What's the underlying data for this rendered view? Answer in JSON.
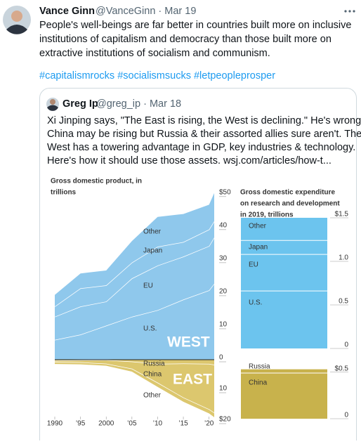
{
  "tweet": {
    "name": "Vance Ginn",
    "meta": "@VanceGinn · Mar 19",
    "text": [
      "People's well-beings are far better in countries built more on inclusive",
      "institutions of capitalism and democracy than those built more on",
      "extractive institutions of socialism and communism."
    ],
    "hashtags": "#capitalismrocks #socialismsucks #letpeopleprosper"
  },
  "quote": {
    "name": "Greg Ip",
    "meta": "@greg_ip · Mar 18",
    "text": [
      "Xi Jinping says, \"The East is rising, the West is declining.\" He's wrong.",
      "China may be rising but Russia & their assorted allies sure aren't. The",
      "West has a towering advantage in GDP, key industries & technology.",
      "Here's how it should use those assets.  wsj.com/articles/how-t..."
    ],
    "gdp_chart": {
      "type": "area",
      "title": [
        "Gross domestic product, in",
        "trillions"
      ],
      "x": [
        1990,
        1995,
        2000,
        2005,
        2010,
        2015,
        2020,
        2021
      ],
      "xlim": [
        1990,
        2021
      ],
      "xticks": [
        1990,
        {
          "value": 1995,
          "label": "’95"
        },
        2000,
        {
          "value": 2005,
          "label": "’05"
        },
        {
          "value": 2010,
          "label": "’10"
        },
        {
          "value": 2015,
          "label": "’15"
        },
        {
          "value": 2020,
          "label": "’20"
        }
      ],
      "west": {
        "label": "WEST",
        "color": "#8fc8ec",
        "ylim": [
          0,
          54
        ],
        "yticks": [
          0,
          10,
          20,
          30,
          40,
          {
            "value": 50,
            "label": "$50"
          }
        ],
        "series": [
          {
            "name": "U.S.",
            "values": [
              6,
              7.6,
              10.3,
              13,
              15,
              18.2,
              21,
              23
            ]
          },
          {
            "name": "EU",
            "values": [
              7,
              8.5,
              7.3,
              11.6,
              13.5,
              13,
              13.4,
              14
            ]
          },
          {
            "name": "Japan",
            "values": [
              3.1,
              5.5,
              4.9,
              4.8,
              5.7,
              4.4,
              5,
              4.9
            ]
          },
          {
            "name": "Other",
            "values": [
              3.5,
              4.5,
              4.5,
              6.5,
              9,
              8.5,
              7.5,
              8.5
            ]
          }
        ]
      },
      "east": {
        "label": "EAST",
        "color": "#dcc76e",
        "ylim": [
          0,
          20
        ],
        "yticks": [
          10,
          {
            "value": 20,
            "label": "$20"
          }
        ],
        "series": [
          {
            "name": "Russia",
            "values": [
              0.5,
              0.3,
              0.26,
              0.76,
              1.5,
              1.4,
              1.5,
              1.8
            ]
          },
          {
            "name": "China",
            "values": [
              0.4,
              0.7,
              1.2,
              2.3,
              6.1,
              11,
              14.7,
              15.5
            ]
          },
          {
            "name": "Other",
            "values": [
              0.5,
              0.5,
              0.5,
              0.8,
              1.2,
              1.2,
              1.2,
              1.3
            ]
          }
        ]
      }
    },
    "rd_chart": {
      "type": "bar",
      "title": [
        "Gross domestic expenditure",
        "on research and development",
        "in 2019, trillions"
      ],
      "west": {
        "color": "#6cc4ee",
        "ylim": [
          0,
          1.5
        ],
        "yticks": [
          0,
          0.5,
          {
            "value": 1,
            "label": "1.0"
          },
          {
            "value": 1.5,
            "label": "$1.5"
          }
        ],
        "series": [
          {
            "name": "U.S.",
            "value": 0.66
          },
          {
            "name": "EU",
            "value": 0.42
          },
          {
            "name": "Japan",
            "value": 0.16
          },
          {
            "name": "Other",
            "value": 0.26
          }
        ]
      },
      "east": {
        "color": "#c8b24c",
        "ylim": [
          0,
          0.55
        ],
        "yticks": [
          0,
          {
            "value": 0.5,
            "label": "$0.5"
          }
        ],
        "series": [
          {
            "name": "China",
            "value": 0.49
          },
          {
            "name": "Russia",
            "value": 0.04
          }
        ]
      }
    }
  }
}
